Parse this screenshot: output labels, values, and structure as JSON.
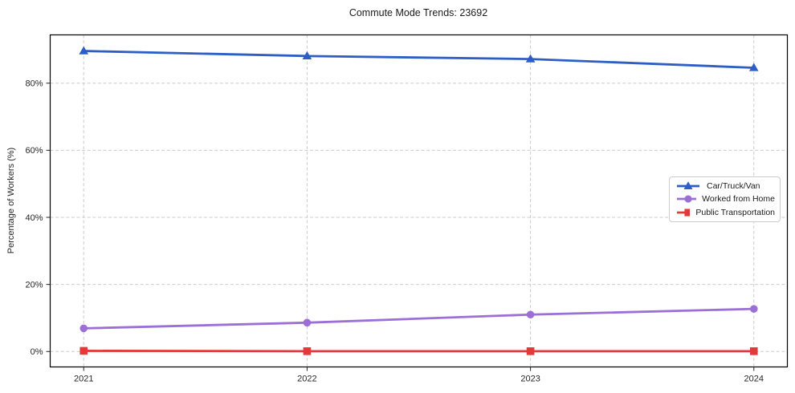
{
  "chart_data": {
    "type": "line",
    "title": "Commute Mode Trends: 23692",
    "xlabel": "",
    "ylabel": "Percentage of Workers (%)",
    "categories": [
      2021,
      2022,
      2023,
      2024
    ],
    "x_tick_labels": [
      "2021",
      "2022",
      "2023",
      "2024"
    ],
    "y_ticks": [
      0,
      20,
      40,
      60,
      80
    ],
    "y_tick_labels": [
      "0%",
      "20%",
      "40%",
      "60%",
      "80%"
    ],
    "xlim": [
      2020.85,
      2024.15
    ],
    "ylim": [
      -4.6,
      94.4
    ],
    "grid": "dashed, horizontal and vertical",
    "legend_position": "center-right inside plot",
    "series": [
      {
        "name": "Car/Truck/Van",
        "marker": "triangle",
        "color": "#2d5ec6",
        "values": [
          89.6,
          88.1,
          87.2,
          84.6
        ]
      },
      {
        "name": "Worked from Home",
        "marker": "circle",
        "color": "#9c6fd6",
        "values": [
          6.9,
          8.6,
          11.0,
          12.7
        ]
      },
      {
        "name": "Public Transportation",
        "marker": "square",
        "color": "#e23a3a",
        "values": [
          0.2,
          0.1,
          0.1,
          0.1
        ]
      }
    ]
  }
}
